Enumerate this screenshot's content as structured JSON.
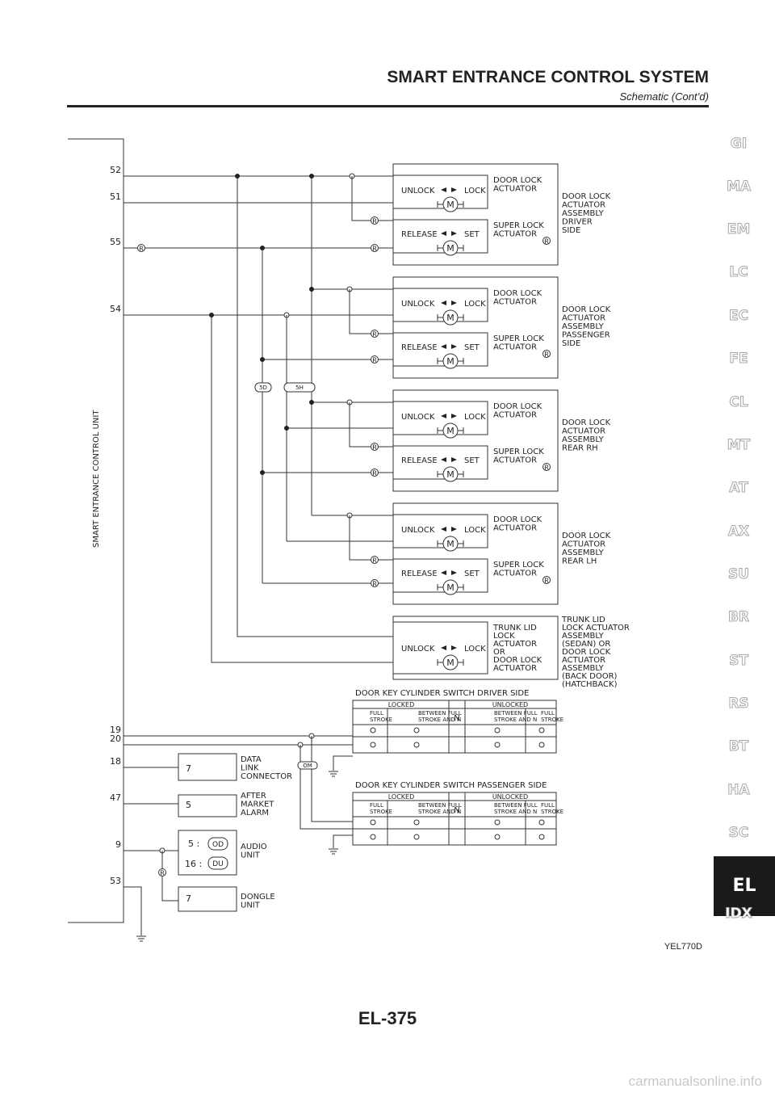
{
  "header": {
    "title": "SMART ENTRANCE CONTROL SYSTEM",
    "subtitle": "Schematic (Cont’d)"
  },
  "side_tabs": [
    "GI",
    "MA",
    "EM",
    "LC",
    "EC",
    "FE",
    "CL",
    "MT",
    "AT",
    "AX",
    "SU",
    "BR",
    "ST",
    "RS",
    "BT",
    "HA",
    "SC",
    "EL",
    "IDX"
  ],
  "active_tab": "EL",
  "control_unit": {
    "label": "SMART ENTRANCE CONTROL UNIT",
    "pins": [
      "52",
      "51",
      "55",
      "54",
      "19",
      "20",
      "18",
      "47",
      "9",
      "53"
    ]
  },
  "connectors": [
    "5D",
    "5H",
    "OM"
  ],
  "relay_symbol": "R",
  "motor_symbol": "M",
  "door_actuators": [
    {
      "assembly": [
        "DOOR LOCK",
        "ACTUATOR",
        "ASSEMBLY",
        "DRIVER",
        "SIDE"
      ],
      "door_lock": {
        "left": "UNLOCK",
        "right": "LOCK",
        "name": [
          "DOOR LOCK",
          "ACTUATOR"
        ]
      },
      "super_lock": {
        "left": "RELEASE",
        "right": "SET",
        "name": [
          "SUPER LOCK",
          "ACTUATOR"
        ]
      }
    },
    {
      "assembly": [
        "DOOR LOCK",
        "ACTUATOR",
        "ASSEMBLY",
        "PASSENGER",
        "SIDE"
      ],
      "door_lock": {
        "left": "UNLOCK",
        "right": "LOCK",
        "name": [
          "DOOR LOCK",
          "ACTUATOR"
        ]
      },
      "super_lock": {
        "left": "RELEASE",
        "right": "SET",
        "name": [
          "SUPER LOCK",
          "ACTUATOR"
        ]
      }
    },
    {
      "assembly": [
        "DOOR LOCK",
        "ACTUATOR",
        "ASSEMBLY",
        "REAR RH"
      ],
      "door_lock": {
        "left": "UNLOCK",
        "right": "LOCK",
        "name": [
          "DOOR LOCK",
          "ACTUATOR"
        ]
      },
      "super_lock": {
        "left": "RELEASE",
        "right": "SET",
        "name": [
          "SUPER LOCK",
          "ACTUATOR"
        ]
      }
    },
    {
      "assembly": [
        "DOOR LOCK",
        "ACTUATOR",
        "ASSEMBLY",
        "REAR LH"
      ],
      "door_lock": {
        "left": "UNLOCK",
        "right": "LOCK",
        "name": [
          "DOOR LOCK",
          "ACTUATOR"
        ]
      },
      "super_lock": {
        "left": "RELEASE",
        "right": "SET",
        "name": [
          "SUPER LOCK",
          "ACTUATOR"
        ]
      }
    }
  ],
  "trunk": {
    "inner": [
      "TRUNK LID",
      "LOCK",
      "ACTUATOR",
      "OR",
      "DOOR LOCK",
      "ACTUATOR"
    ],
    "outer": [
      "TRUNK LID",
      "LOCK ACTUATOR",
      "ASSEMBLY",
      "(SEDAN) OR",
      "DOOR LOCK",
      "ACTUATOR",
      "ASSEMBLY",
      "(BACK DOOR)",
      "(HATCHBACK)"
    ],
    "left": "UNLOCK",
    "right": "LOCK"
  },
  "key_switches": [
    {
      "title": "DOOR KEY CYLINDER SWITCH DRIVER SIDE"
    },
    {
      "title": "DOOR KEY CYLINDER SWITCH PASSENGER SIDE"
    }
  ],
  "switch_table": {
    "locked": "LOCKED",
    "unlocked": "UNLOCKED",
    "n": "N",
    "col1": [
      "FULL",
      "STROKE"
    ],
    "col2": [
      "BETWEEN FULL",
      "STROKE AND N"
    ],
    "col3": [
      "BETWEEN FULL",
      "STROKE AND N"
    ],
    "col4": [
      "FULL",
      "STROKE"
    ]
  },
  "modules": [
    {
      "value": "7",
      "label": [
        "DATA",
        "LINK",
        "CONNECTOR"
      ]
    },
    {
      "value": "5",
      "label": [
        "AFTER",
        "MARKET",
        "ALARM"
      ]
    },
    {
      "rows": [
        "5 :",
        "16 :"
      ],
      "codes": [
        "OD",
        "DU"
      ],
      "label": [
        "AUDIO",
        "UNIT"
      ]
    },
    {
      "value": "7",
      "label": [
        "DONGLE",
        "UNIT"
      ]
    }
  ],
  "figure_id": "YEL770D",
  "page_number": "EL-375",
  "watermark": "carmanualsonline.info"
}
